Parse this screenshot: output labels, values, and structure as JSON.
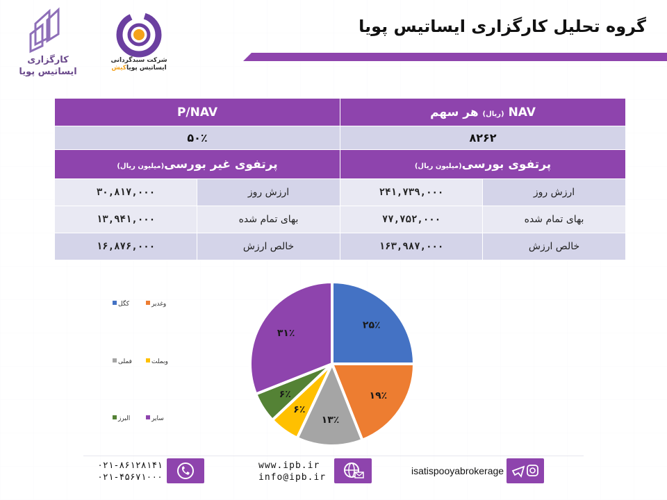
{
  "header": {
    "title": "گروه تحلیل کارگزاری ایساتیس پویا",
    "logo_left_text_line1": "کارگزاری",
    "logo_left_text_line2": "ایساتیس پویا",
    "logo_mid_line1": "شرکت سبدگردانی",
    "logo_mid_line2a": "ایساتیس پویا",
    "logo_mid_line2b": "کیش"
  },
  "table": {
    "nav_header": "NAV",
    "nav_header_unit": "(ریال)",
    "nav_header_suffix": "هر سهم",
    "pnav_header": "P/NAV",
    "nav_value": "۸۲۶۲",
    "pnav_value": "۵۰٪",
    "bourse_header": "پرتفوی بورسی",
    "bourse_unit": "(میلیون ریال)",
    "nonbourse_header": "پرتفوی غیر بورسی",
    "nonbourse_unit": "(میلیون ریال)",
    "rows": [
      {
        "label": "ارزش روز",
        "bourse": "۲۴۱,۷۳۹,۰۰۰",
        "label2": "ارزش روز",
        "nonbourse": "۳۰,۸۱۷,۰۰۰"
      },
      {
        "label": "بهای تمام شده",
        "bourse": "۷۷,۷۵۲,۰۰۰",
        "label2": "بهای تمام شده",
        "nonbourse": "۱۳,۹۴۱,۰۰۰"
      },
      {
        "label": "خالص ارزش",
        "bourse": "۱۶۳,۹۸۷,۰۰۰",
        "label2": "خالص ارزش",
        "nonbourse": "۱۶,۸۷۶,۰۰۰"
      }
    ]
  },
  "chart_data": {
    "type": "pie",
    "labels": [
      "کگل",
      "وغدیر",
      "فملی",
      "وبملت",
      "البرز",
      "سایر"
    ],
    "values": [
      25,
      19,
      13,
      6,
      6,
      31
    ],
    "data_labels": [
      "۲۵٪",
      "۱۹٪",
      "۱۳٪",
      "۶٪",
      "۶٪",
      "۳۱٪"
    ],
    "colors": [
      "#4472c4",
      "#ed7d31",
      "#a5a5a5",
      "#ffc000",
      "#548235",
      "#8e44ad"
    ],
    "legend_position": "left"
  },
  "footer": {
    "phone1": "۰۲۱-۸۶۱۲۸۱۴۱",
    "phone2": "۰۲۱-۴۵۶۷۱۰۰۰",
    "website": "www.ipb.ir",
    "email": "info@ipb.ir",
    "social": "isatispooyabrokerage",
    "phone_icon": "phone-icon",
    "web_icon": "globe-mail-icon",
    "social_icon": "telegram-instagram-icon"
  }
}
